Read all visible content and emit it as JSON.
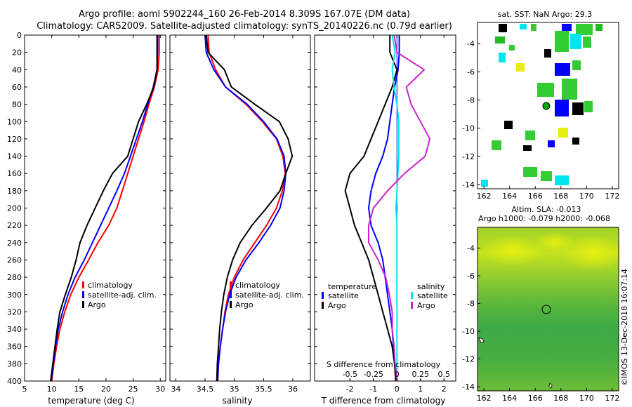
{
  "title": {
    "line1": "Argo profile: aoml 5902244_160 26-Feb-2014 8.309S 167.07E (DM data)",
    "line2": "Climatology: CARS2009. Satellite-adjusted climatology: synTS_20140226.nc (0.79d earlier)"
  },
  "colors": {
    "climatology": "#ff0000",
    "satellite": "#0000ff",
    "argo": "#000000",
    "sat_salinity": "#00e5ee",
    "argo_salinity": "#cc22cc"
  },
  "chart_data": [
    {
      "type": "line",
      "name": "temperature",
      "xlabel": "temperature (deg C)",
      "xlim": [
        5,
        31
      ],
      "ylim": [
        400,
        0
      ],
      "xticks": [
        "5",
        "10",
        "15",
        "20",
        "25",
        "30"
      ],
      "xtick_values": [
        5,
        10,
        15,
        20,
        25,
        30
      ],
      "yticks": [
        "0",
        "20",
        "40",
        "60",
        "80",
        "100",
        "120",
        "140",
        "160",
        "180",
        "200",
        "220",
        "240",
        "260",
        "280",
        "300",
        "320",
        "340",
        "360",
        "380",
        "400"
      ],
      "legend": [
        "climatology",
        "satellite-adj. clim.",
        "Argo"
      ],
      "depth": [
        0,
        20,
        40,
        60,
        80,
        100,
        120,
        140,
        160,
        180,
        200,
        220,
        240,
        260,
        280,
        300,
        320,
        340,
        360,
        380,
        400
      ],
      "series": [
        {
          "name": "climatology",
          "color": "#ff0000",
          "values": [
            29.8,
            29.8,
            29.6,
            28.9,
            27.9,
            27.0,
            26.0,
            25.0,
            24.0,
            23.0,
            22.0,
            20.5,
            18.5,
            16.8,
            15.0,
            13.5,
            12.4,
            11.5,
            10.9,
            10.4,
            10.0
          ]
        },
        {
          "name": "satellite-adj. clim.",
          "color": "#0000ff",
          "values": [
            29.5,
            29.5,
            29.4,
            28.7,
            27.7,
            26.7,
            25.6,
            24.5,
            23.4,
            22.0,
            20.5,
            19.0,
            17.5,
            16.0,
            14.3,
            13.0,
            12.0,
            11.2,
            10.7,
            10.3,
            9.9
          ]
        },
        {
          "name": "Argo",
          "color": "#000000",
          "values": [
            29.4,
            29.4,
            29.4,
            28.8,
            27.5,
            26.0,
            25.0,
            24.0,
            21.2,
            19.5,
            18.0,
            16.5,
            15.2,
            14.5,
            13.6,
            12.5,
            11.5,
            11.0,
            10.6,
            10.2,
            9.8
          ]
        }
      ]
    },
    {
      "type": "line",
      "name": "salinity",
      "xlabel": "salinity",
      "xlim": [
        33.9,
        36.3
      ],
      "ylim": [
        400,
        0
      ],
      "xticks": [
        "34",
        "34.5",
        "35",
        "35.5",
        "36"
      ],
      "xtick_values": [
        34,
        34.5,
        35,
        35.5,
        36
      ],
      "legend": [
        "climatology",
        "satellite-adj. clim.",
        "Argo"
      ],
      "depth": [
        0,
        20,
        40,
        60,
        80,
        100,
        120,
        140,
        160,
        180,
        200,
        220,
        240,
        260,
        280,
        300,
        320,
        340,
        360,
        380,
        400
      ],
      "series": [
        {
          "name": "climatology",
          "color": "#ff0000",
          "values": [
            34.55,
            34.57,
            34.68,
            34.85,
            35.2,
            35.48,
            35.72,
            35.83,
            35.87,
            35.82,
            35.72,
            35.55,
            35.35,
            35.15,
            35.0,
            34.9,
            34.84,
            34.8,
            34.76,
            34.73,
            34.72
          ]
        },
        {
          "name": "satellite-adj. clim.",
          "color": "#0000ff",
          "values": [
            34.5,
            34.52,
            34.65,
            34.85,
            35.22,
            35.5,
            35.73,
            35.85,
            35.88,
            35.85,
            35.78,
            35.62,
            35.42,
            35.2,
            35.03,
            34.92,
            34.85,
            34.8,
            34.76,
            34.73,
            34.71
          ]
        },
        {
          "name": "Argo",
          "color": "#000000",
          "values": [
            34.52,
            34.55,
            34.83,
            34.95,
            35.35,
            35.77,
            35.92,
            35.99,
            35.88,
            35.78,
            35.55,
            35.3,
            35.1,
            34.97,
            34.88,
            34.82,
            34.78,
            34.75,
            34.73,
            34.71,
            34.7
          ]
        }
      ]
    },
    {
      "type": "line",
      "name": "difference",
      "xlabel": "T difference from climatology",
      "xlabel_top": "S difference from climatology",
      "xlim": [
        -3.5,
        2.5
      ],
      "ylim": [
        400,
        0
      ],
      "xticks": [
        "-2",
        "-1",
        "0",
        "1",
        "2"
      ],
      "xtick_values": [
        -2,
        -1,
        0,
        1,
        2
      ],
      "top_xticks": [
        "-0.5",
        "-0.25",
        "0",
        "0.25",
        "0.5"
      ],
      "legend_temperature_title": "temperature",
      "legend_salinity_title": "salinity",
      "legend": [
        "satellite",
        "Argo",
        "satellite",
        "Argo"
      ],
      "depth": [
        0,
        20,
        40,
        60,
        80,
        100,
        120,
        140,
        160,
        180,
        200,
        220,
        240,
        260,
        280,
        300,
        320,
        340,
        360,
        380,
        400
      ],
      "series": [
        {
          "name": "T satellite",
          "color": "#0000ff",
          "values": [
            0.1,
            0.1,
            0.05,
            -0.1,
            -0.2,
            -0.3,
            -0.4,
            -0.6,
            -0.9,
            -1.1,
            -1.2,
            -1.1,
            -0.8,
            -0.6,
            -0.5,
            -0.4,
            -0.3,
            -0.2,
            -0.15,
            -0.1,
            -0.05
          ]
        },
        {
          "name": "T Argo",
          "color": "#000000",
          "values": [
            -0.3,
            -0.3,
            0.0,
            -0.2,
            -0.5,
            -0.8,
            -1.1,
            -1.4,
            -2.0,
            -2.2,
            -2.0,
            -1.8,
            -1.5,
            -1.2,
            -1.0,
            -0.8,
            -0.6,
            -0.4,
            -0.2,
            -0.1,
            -0.05
          ]
        },
        {
          "name": "S satellite",
          "color": "#00e5ee",
          "values": [
            -0.05,
            -0.02,
            -0.05,
            -0.03,
            0.0,
            0.02,
            0.02,
            0.02,
            0.01,
            0.0,
            -0.01,
            0.0,
            0.0,
            0.0,
            0.0,
            0.0,
            0.0,
            0.0,
            0.0,
            0.0,
            0.0
          ]
        },
        {
          "name": "S Argo",
          "color": "#cc22cc",
          "values": [
            -0.03,
            0.0,
            0.29,
            0.1,
            0.15,
            0.25,
            0.35,
            0.3,
            0.08,
            -0.1,
            -0.25,
            -0.3,
            -0.3,
            -0.2,
            -0.12,
            -0.08,
            -0.05,
            -0.05,
            -0.03,
            -0.02,
            0.0
          ]
        }
      ]
    }
  ],
  "maps": [
    {
      "title": "sat. SST: NaN Argo: 29.3",
      "xticks": [
        "162",
        "164",
        "166",
        "168",
        "170",
        "172"
      ],
      "yticks": [
        "-4",
        "-6",
        "-8",
        "-10",
        "-12",
        "-14"
      ]
    },
    {
      "title1": "Altim. SLA: -0.013",
      "title2": "Argo h1000: -0.079 h2000: -0.068",
      "xticks": [
        "162",
        "164",
        "166",
        "168",
        "170",
        "172"
      ],
      "yticks": [
        "-4",
        "-6",
        "-8",
        "-10",
        "-12",
        "-14"
      ]
    }
  ],
  "credit": "©IMOS 13-Dec-2018 16:07:14"
}
